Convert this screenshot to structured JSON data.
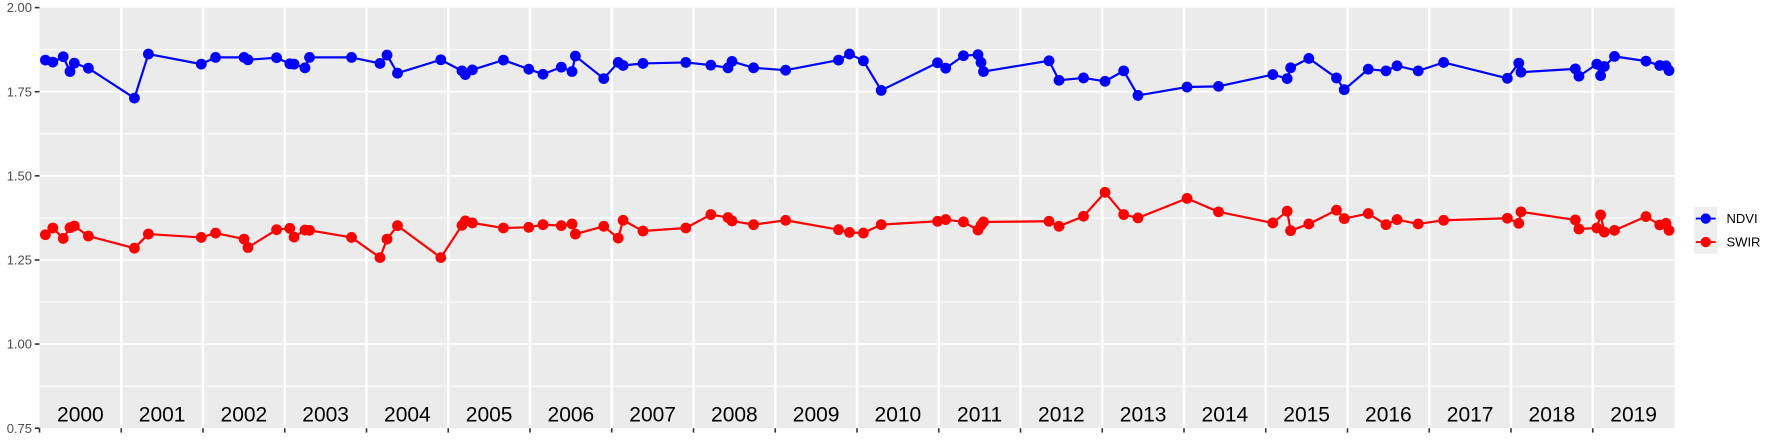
{
  "chart_data": {
    "type": "line",
    "title": "",
    "xlabel": "",
    "ylabel": "",
    "x_domain": [
      2000,
      2020
    ],
    "y_domain": [
      0.75,
      2.0
    ],
    "grid": "on",
    "legend_position": "right-center-outside",
    "y_major_ticks": [
      2.0,
      1.75,
      1.5,
      1.25,
      1.0,
      0.75
    ],
    "y_tick_labels": [
      "2.00",
      "1.75",
      "1.50",
      "1.25",
      "1.00",
      "0.75"
    ],
    "y_minor_ticks": [
      1.875,
      1.625,
      1.375,
      1.125,
      0.875
    ],
    "x_tick_years": [
      2000,
      2001,
      2002,
      2003,
      2004,
      2005,
      2006,
      2007,
      2008,
      2009,
      2010,
      2011,
      2012,
      2013,
      2014,
      2015,
      2016,
      2017,
      2018,
      2019
    ],
    "x_year_labels": [
      "2000",
      "2001",
      "2002",
      "2003",
      "2004",
      "2005",
      "2006",
      "2007",
      "2008",
      "2009",
      "2010",
      "2011",
      "2012",
      "2013",
      "2014",
      "2015",
      "2016",
      "2017",
      "2018",
      "2019"
    ],
    "x": [
      2000.072,
      2000.163,
      2000.29,
      2000.373,
      2000.426,
      2000.598,
      2001.161,
      2001.332,
      2001.979,
      2002.154,
      2002.502,
      2002.55,
      2002.9,
      2003.062,
      2003.114,
      2003.247,
      2003.303,
      2003.817,
      2004.165,
      2004.251,
      2004.379,
      2004.909,
      2005.168,
      2005.209,
      2005.295,
      2005.675,
      2005.985,
      2006.159,
      2006.383,
      2006.514,
      2006.555,
      2006.902,
      2007.079,
      2007.139,
      2007.382,
      2007.906,
      2008.212,
      2008.422,
      2008.471,
      2008.735,
      2009.127,
      2009.774,
      2009.908,
      2010.078,
      2010.296,
      2010.985,
      2011.085,
      2011.302,
      2011.48,
      2011.517,
      2011.547,
      2012.349,
      2012.471,
      2012.771,
      2013.034,
      2013.262,
      2013.437,
      2014.037,
      2014.422,
      2015.086,
      2015.262,
      2015.304,
      2015.527,
      2015.865,
      2015.96,
      2016.254,
      2016.471,
      2016.606,
      2016.865,
      2017.176,
      2017.955,
      2018.095,
      2018.122,
      2018.787,
      2018.831,
      2019.05,
      2019.096,
      2019.141,
      2019.266,
      2019.651,
      2019.819,
      2019.896,
      2019.933
    ],
    "series": [
      {
        "name": "NDVI",
        "color": "#0000FF",
        "values": [
          1.844,
          1.838,
          1.854,
          1.81,
          1.835,
          1.82,
          1.731,
          1.862,
          1.832,
          1.852,
          1.852,
          1.845,
          1.851,
          1.833,
          1.832,
          1.821,
          1.852,
          1.852,
          1.834,
          1.859,
          1.805,
          1.845,
          1.812,
          1.801,
          1.815,
          1.844,
          1.817,
          1.802,
          1.823,
          1.81,
          1.856,
          1.789,
          1.837,
          1.828,
          1.834,
          1.837,
          1.829,
          1.821,
          1.84,
          1.821,
          1.814,
          1.844,
          1.862,
          1.842,
          1.754,
          1.836,
          1.82,
          1.857,
          1.86,
          1.837,
          1.81,
          1.842,
          1.784,
          1.791,
          1.781,
          1.812,
          1.739,
          1.764,
          1.766,
          1.801,
          1.789,
          1.821,
          1.849,
          1.791,
          1.756,
          1.817,
          1.812,
          1.827,
          1.812,
          1.837,
          1.79,
          1.835,
          1.808,
          1.818,
          1.796,
          1.832,
          1.798,
          1.825,
          1.855,
          1.841,
          1.828,
          1.827,
          1.813
        ]
      },
      {
        "name": "SWIR",
        "color": "#FF0000",
        "values": [
          1.325,
          1.345,
          1.314,
          1.346,
          1.351,
          1.321,
          1.285,
          1.327,
          1.317,
          1.33,
          1.312,
          1.287,
          1.34,
          1.344,
          1.318,
          1.339,
          1.338,
          1.317,
          1.257,
          1.312,
          1.352,
          1.257,
          1.353,
          1.366,
          1.36,
          1.345,
          1.347,
          1.355,
          1.352,
          1.357,
          1.327,
          1.35,
          1.315,
          1.368,
          1.336,
          1.345,
          1.385,
          1.376,
          1.366,
          1.355,
          1.368,
          1.34,
          1.332,
          1.33,
          1.355,
          1.365,
          1.37,
          1.363,
          1.339,
          1.353,
          1.363,
          1.365,
          1.35,
          1.38,
          1.451,
          1.385,
          1.375,
          1.433,
          1.393,
          1.36,
          1.395,
          1.337,
          1.357,
          1.398,
          1.373,
          1.388,
          1.355,
          1.37,
          1.357,
          1.368,
          1.374,
          1.359,
          1.393,
          1.369,
          1.342,
          1.345,
          1.384,
          1.333,
          1.338,
          1.379,
          1.354,
          1.359,
          1.338
        ]
      }
    ]
  },
  "legend": {
    "items": [
      {
        "label": "NDVI",
        "color": "#0000FF"
      },
      {
        "label": "SWIR",
        "color": "#FF0000"
      }
    ]
  },
  "style": {
    "panel_bg": "#EBEBEB",
    "grid_color": "#FFFFFF",
    "y_axis_text_color": "#4D4D4D",
    "x_axis_text_color": "#000000",
    "tick_color": "#333333",
    "legend_key_bg": "#EFEFEF",
    "legend_text_color": "#000000"
  }
}
